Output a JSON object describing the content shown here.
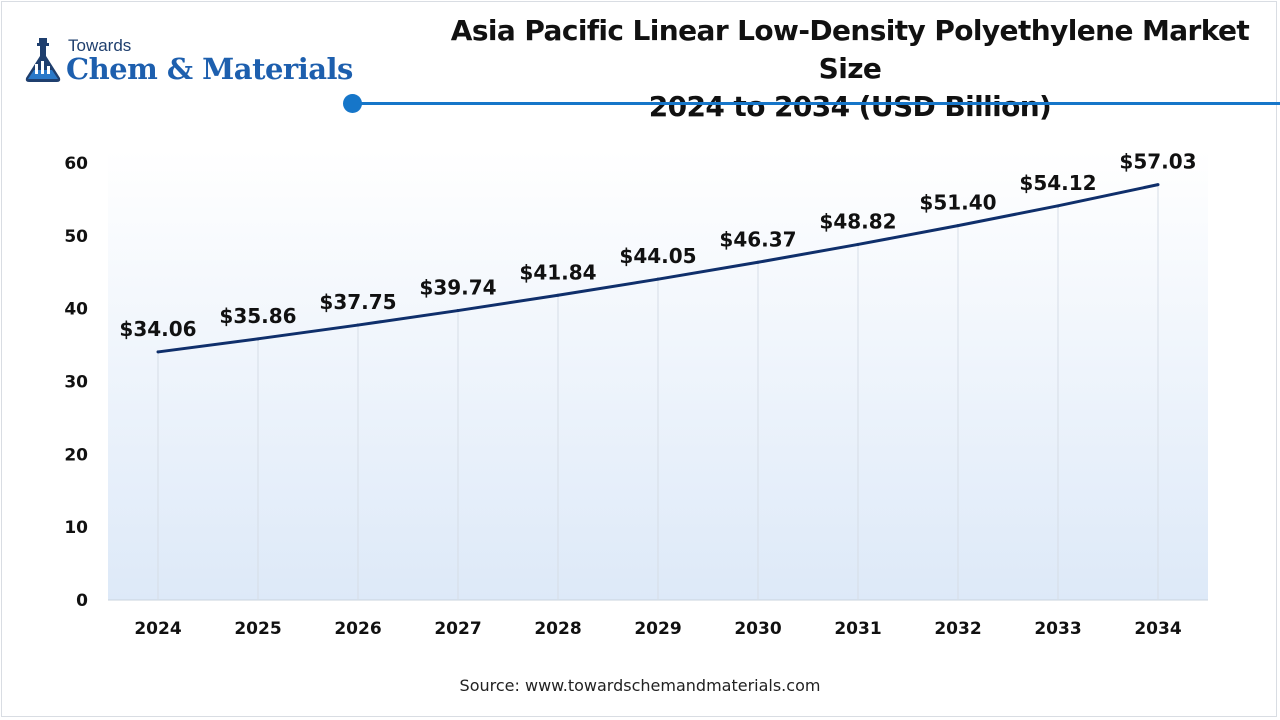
{
  "brand": {
    "top": "Towards",
    "name": "Chem & Materials"
  },
  "header": {
    "title_line1": "Asia Pacific Linear Low-Density Polyethylene Market Size",
    "title_line2": "2024 to 2034 (USD Billion)"
  },
  "source": "Source: www.towardschemandmaterials.com",
  "colors": {
    "line": "#0f2f6b",
    "accent": "#1676c9",
    "fill_top": "#ffffff",
    "fill_bottom": "#dde9f8"
  },
  "chart_data": {
    "type": "area",
    "title": "Asia Pacific Linear Low-Density Polyethylene Market Size 2024 to 2034 (USD Billion)",
    "x": [
      "2024",
      "2025",
      "2026",
      "2027",
      "2028",
      "2029",
      "2030",
      "2031",
      "2032",
      "2033",
      "2034"
    ],
    "series": [
      {
        "values": [
          34.06,
          35.86,
          37.75,
          39.74,
          41.84,
          44.05,
          46.37,
          48.82,
          51.4,
          54.12,
          57.03
        ]
      }
    ],
    "data_labels": [
      "$34.06",
      "$35.86",
      "$37.75",
      "$39.74",
      "$41.84",
      "$44.05",
      "$46.37",
      "$48.82",
      "$51.40",
      "$54.12",
      "$57.03"
    ],
    "y_ticks": [
      "0",
      "10",
      "20",
      "30",
      "40",
      "50",
      "60"
    ],
    "ylim": [
      0,
      60
    ],
    "grid": "vertical",
    "legend": "none"
  }
}
